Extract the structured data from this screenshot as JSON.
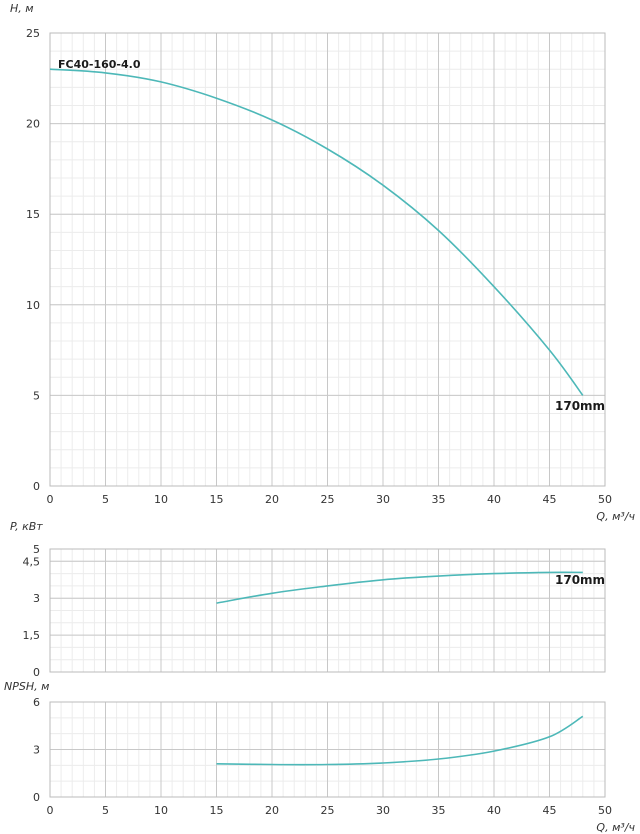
{
  "model": "FC40-160-4.0",
  "series_label": "170mm",
  "curve_color": "#4db8b8",
  "chart_data": [
    {
      "type": "line",
      "ylabel": "H, м",
      "xlabel": "Q, м³/ч",
      "xlim": [
        0,
        50
      ],
      "ylim": [
        0,
        25
      ],
      "xticks": [
        "0",
        "5",
        "10",
        "15",
        "20",
        "25",
        "30",
        "35",
        "40",
        "45",
        "50"
      ],
      "yticks": [
        "0",
        "5",
        "10",
        "15",
        "20",
        "25"
      ],
      "yticks_values": [
        0,
        5,
        10,
        15,
        20,
        25
      ],
      "grid": true,
      "series": [
        {
          "name": "170mm",
          "x": [
            0,
            5,
            10,
            15,
            20,
            25,
            30,
            35,
            40,
            45,
            48
          ],
          "y": [
            23.0,
            22.8,
            22.3,
            21.4,
            20.2,
            18.6,
            16.6,
            14.1,
            11.0,
            7.5,
            5.0
          ]
        }
      ]
    },
    {
      "type": "line",
      "ylabel": "P, кВт",
      "xlim": [
        0,
        50
      ],
      "ylim": [
        0,
        5
      ],
      "yticks": [
        "0",
        "1,5",
        "3",
        "4,5",
        "5"
      ],
      "yticks_values": [
        0,
        1.5,
        3,
        4.5,
        5
      ],
      "grid": true,
      "series": [
        {
          "name": "170mm",
          "x": [
            15,
            20,
            25,
            30,
            35,
            40,
            45,
            48
          ],
          "y": [
            2.8,
            3.2,
            3.5,
            3.75,
            3.9,
            4.0,
            4.05,
            4.05
          ]
        }
      ]
    },
    {
      "type": "line",
      "ylabel": "NPSH, м",
      "xlabel": "Q, м³/ч",
      "xlim": [
        0,
        50
      ],
      "ylim": [
        0,
        6
      ],
      "xticks": [
        "0",
        "5",
        "10",
        "15",
        "20",
        "25",
        "30",
        "35",
        "40",
        "45",
        "50"
      ],
      "yticks": [
        "0",
        "3",
        "6"
      ],
      "yticks_values": [
        0,
        3,
        6
      ],
      "grid": true,
      "series": [
        {
          "name": "170mm",
          "x": [
            15,
            20,
            25,
            30,
            35,
            40,
            45,
            48
          ],
          "y": [
            2.1,
            2.05,
            2.05,
            2.15,
            2.4,
            2.9,
            3.8,
            5.1
          ]
        }
      ]
    }
  ]
}
